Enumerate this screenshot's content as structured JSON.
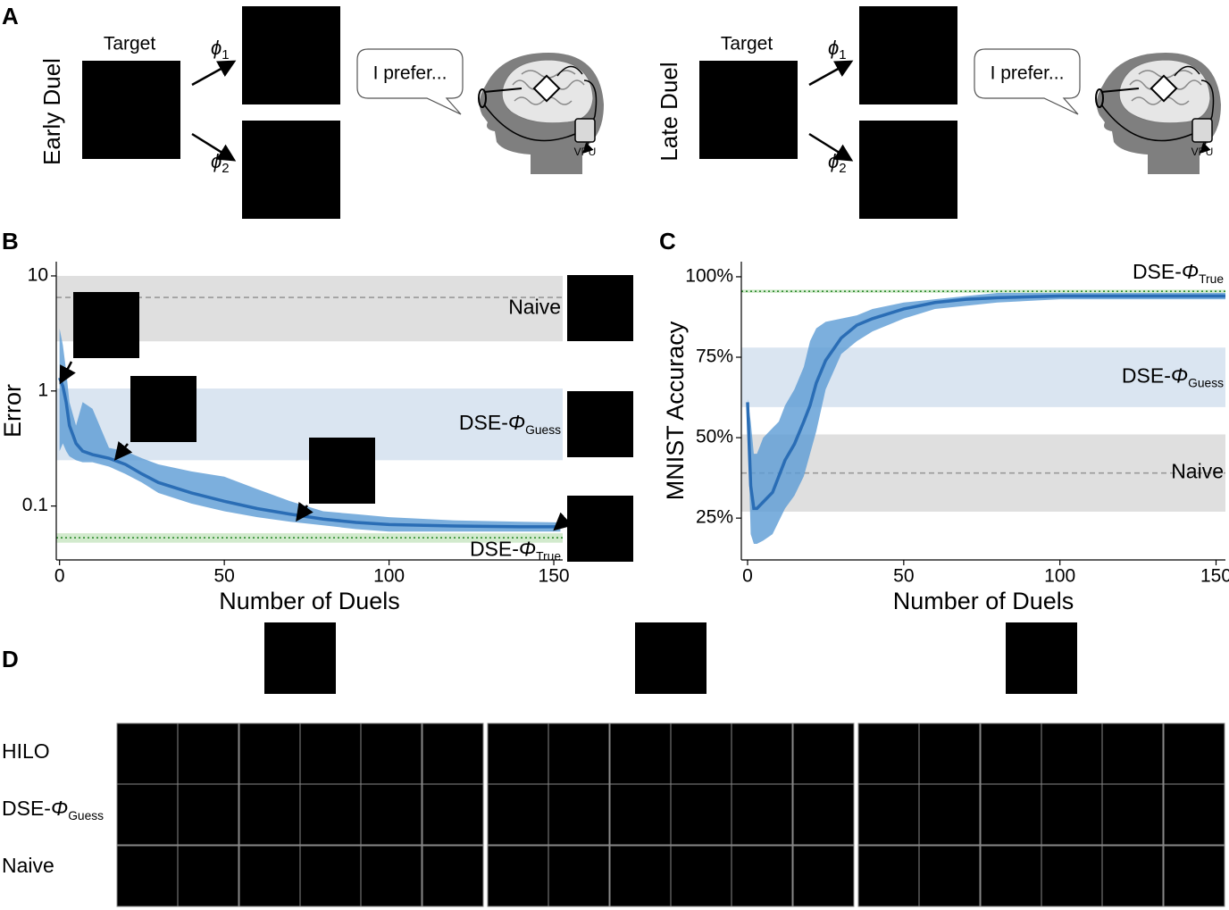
{
  "figure": {
    "panel_labels": [
      "A",
      "B",
      "C",
      "D"
    ],
    "duels": [
      {
        "title": "Early Duel",
        "target": "Target",
        "phi": "ϕ",
        "subs": [
          "1",
          "2"
        ],
        "speech": "I prefer...",
        "vpu": "VPU"
      },
      {
        "title": "Late Duel",
        "target": "Target",
        "phi": "ϕ",
        "subs": [
          "1",
          "2"
        ],
        "speech": "I prefer...",
        "vpu": "VPU"
      }
    ],
    "rows": [
      {
        "label": "HILO"
      },
      {
        "label": "DSE-",
        "symbol": "Φ",
        "sub": "Guess"
      },
      {
        "label": "Naive"
      }
    ]
  },
  "chart_data": [
    {
      "type": "line",
      "ylabel": "Error",
      "xlabel": "Number of Duels",
      "yscale": "log",
      "xlim": [
        -1,
        152.7
      ],
      "ylim": [
        0.034,
        13.3
      ],
      "xticks": [
        0,
        50,
        100,
        150
      ],
      "yticks": [
        0.1,
        1,
        10
      ],
      "x": [
        0,
        1,
        2,
        3,
        5,
        7,
        10,
        15,
        20,
        25,
        30,
        40,
        50,
        60,
        70,
        80,
        90,
        100,
        120,
        140,
        152
      ],
      "series": [
        {
          "color": "#2a6db5",
          "band_color": "#5b9bd5",
          "values": [
            1.3,
            1.1,
            0.8,
            0.5,
            0.35,
            0.3,
            0.28,
            0.26,
            0.23,
            0.19,
            0.16,
            0.13,
            0.11,
            0.095,
            0.085,
            0.077,
            0.072,
            0.069,
            0.067,
            0.066,
            0.066
          ],
          "lower": [
            0.3,
            0.35,
            0.3,
            0.27,
            0.25,
            0.24,
            0.24,
            0.22,
            0.19,
            0.16,
            0.13,
            0.105,
            0.09,
            0.08,
            0.073,
            0.068,
            0.063,
            0.06,
            0.06,
            0.06,
            0.06
          ],
          "upper": [
            3.5,
            2.5,
            1.5,
            0.8,
            0.5,
            0.8,
            0.7,
            0.32,
            0.3,
            0.26,
            0.23,
            0.2,
            0.18,
            0.14,
            0.11,
            0.09,
            0.085,
            0.08,
            0.075,
            0.073,
            0.072
          ]
        }
      ],
      "bands": [
        {
          "label": "Naive",
          "range": [
            2.7,
            10
          ],
          "line": 6.5,
          "line_style": "dashed",
          "fill": "#dcdcdc",
          "line_color": "#999999",
          "text_color": "#777777"
        },
        {
          "label": "DSE-",
          "symbol": "Φ",
          "sub": "Guess",
          "range": [
            0.25,
            1.05
          ],
          "fill": "#d6e2f0",
          "text_color": "#7b5ea7"
        },
        {
          "label": "DSE-",
          "symbol": "Φ",
          "sub": "True",
          "range": [
            0.048,
            0.058
          ],
          "line": 0.053,
          "line_style": "dotted",
          "fill": "#cde8c8",
          "line_color": "#2e8b2e",
          "text_color": "#1a7a1a"
        }
      ]
    },
    {
      "type": "line",
      "ylabel": "MNIST Accuracy",
      "xlabel": "Number of Duels",
      "xlim": [
        -2,
        153
      ],
      "ylim": [
        12,
        104.7
      ],
      "xticks": [
        0,
        50,
        100,
        150
      ],
      "yticks": [
        {
          "value": 25,
          "label": "25%"
        },
        {
          "value": 50,
          "label": "50%"
        },
        {
          "value": 75,
          "label": "75%"
        },
        {
          "value": 100,
          "label": "100%"
        }
      ],
      "x": [
        0,
        1,
        2,
        3,
        5,
        8,
        10,
        12,
        15,
        18,
        20,
        22,
        25,
        30,
        35,
        40,
        50,
        60,
        70,
        80,
        100,
        120,
        140,
        153
      ],
      "series": [
        {
          "color": "#2a6db5",
          "band_color": "#5b9bd5",
          "values": [
            61,
            35,
            28,
            28,
            30,
            33,
            38,
            43,
            48,
            55,
            60,
            67,
            74,
            81,
            85,
            87,
            90,
            92,
            93,
            93.5,
            94,
            94,
            94,
            94
          ],
          "lower": [
            55,
            20,
            17,
            17,
            18,
            20,
            24,
            28,
            32,
            38,
            45,
            52,
            65,
            76,
            80,
            83,
            87,
            90,
            91,
            92,
            93,
            93,
            93,
            93
          ],
          "upper": [
            62,
            55,
            45,
            45,
            50,
            53,
            55,
            60,
            65,
            72,
            80,
            84,
            86,
            87,
            88,
            90,
            92,
            93,
            94,
            95,
            95,
            95,
            95,
            95
          ]
        }
      ],
      "bands": [
        {
          "label": "DSE-",
          "symbol": "Φ",
          "sub": "True",
          "range": [
            95,
            96
          ],
          "line": 95.5,
          "line_style": "dotted",
          "fill": "#cde8c8",
          "line_color": "#2e8b2e",
          "text_color": "#1a7a1a"
        },
        {
          "label": "DSE-",
          "symbol": "Φ",
          "sub": "Guess",
          "range": [
            59.5,
            78
          ],
          "fill": "#d6e2f0",
          "text_color": "#7b5ea7"
        },
        {
          "label": "Naive",
          "range": [
            27,
            51
          ],
          "line": 39,
          "line_style": "dashed",
          "fill": "#dcdcdc",
          "line_color": "#999999",
          "text_color": "#777777"
        }
      ]
    }
  ]
}
